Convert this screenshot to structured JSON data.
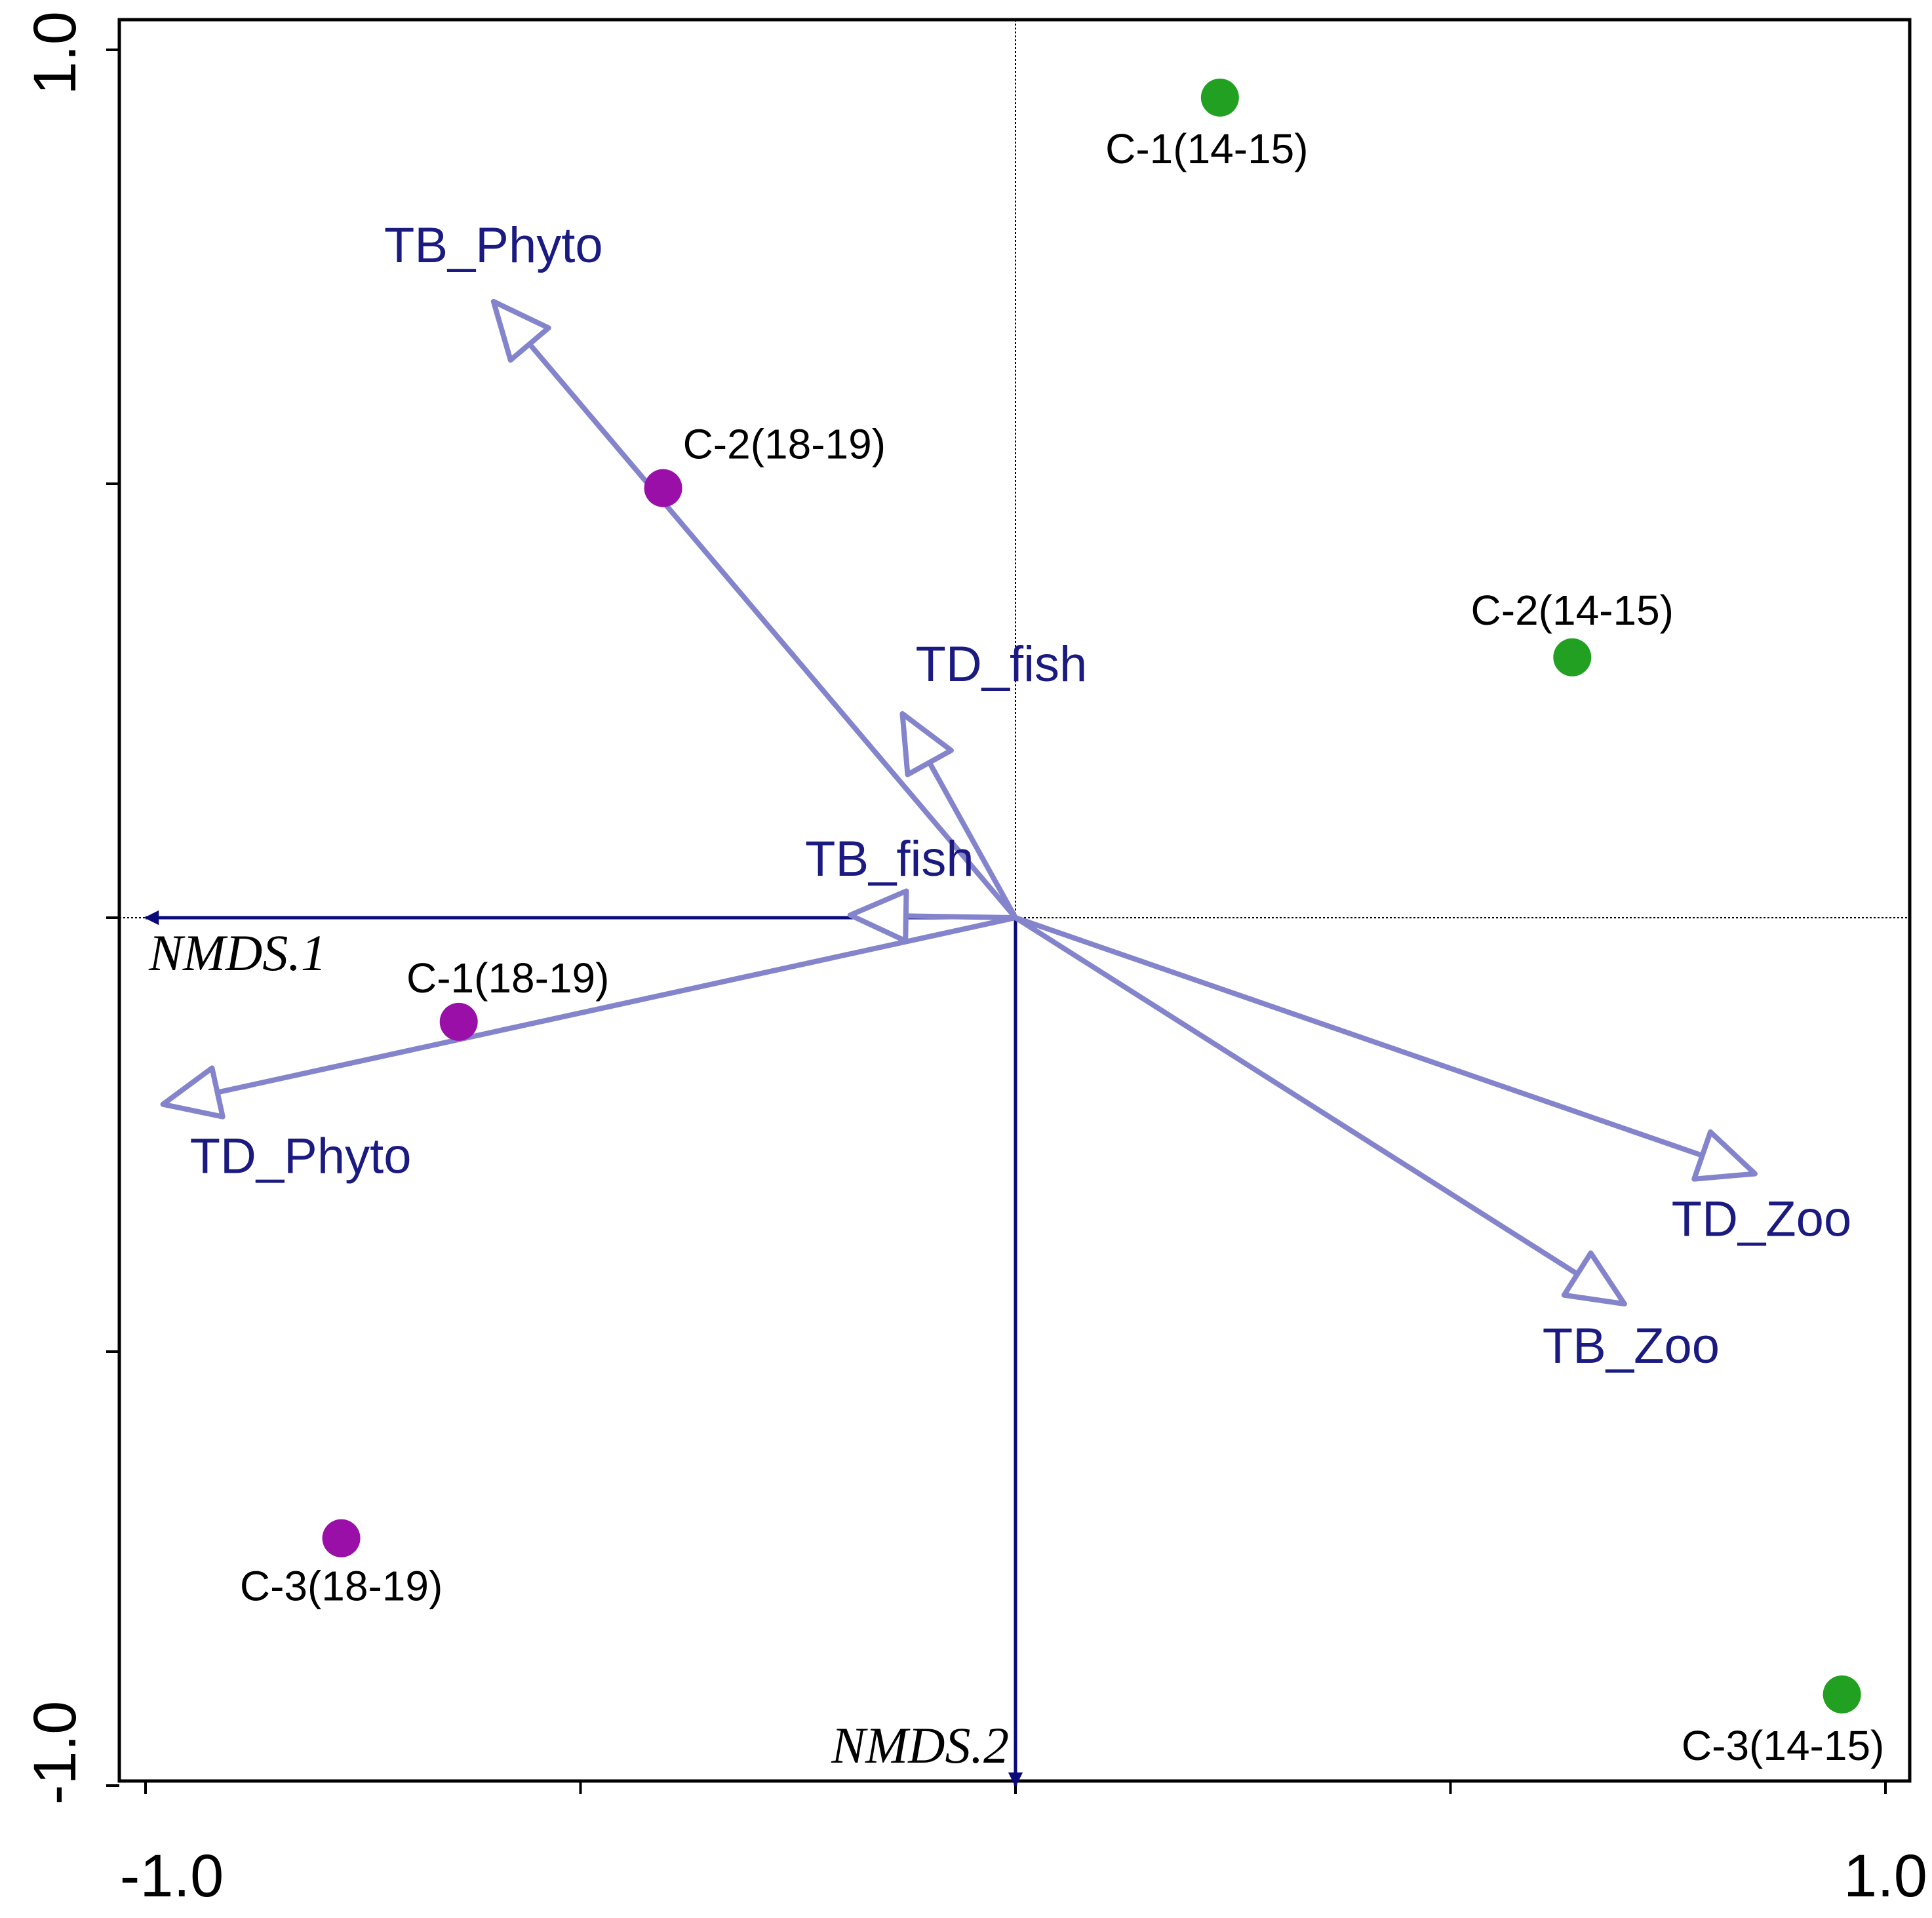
{
  "chart_data": {
    "type": "scatter",
    "subtype": "NMDS biplot",
    "title": "",
    "xlim": [
      -1.03,
      1.03
    ],
    "ylim": [
      -1.03,
      1.03
    ],
    "x_tick_values": [
      -1.0,
      -0.5,
      0.0,
      0.5,
      1.0
    ],
    "y_tick_values": [
      -1.0,
      -0.5,
      0.0,
      0.5,
      1.0
    ],
    "x_tick_labels": [
      "-1.0",
      "1.0"
    ],
    "y_tick_labels": [
      "1.0",
      "-1.0"
    ],
    "axis_arrows": [
      {
        "name": "NMDS.1",
        "x": -1.0,
        "y": 0.0
      },
      {
        "name": "NMDS.2",
        "x": 0.0,
        "y": -1.0
      }
    ],
    "vectors": [
      {
        "name": "TB_Phyto",
        "x": -0.6,
        "y": 0.71
      },
      {
        "name": "TD_fish",
        "x": -0.13,
        "y": 0.235
      },
      {
        "name": "TB_fish",
        "x": -0.19,
        "y": 0.003
      },
      {
        "name": "TD_Phyto",
        "x": -0.98,
        "y": -0.215
      },
      {
        "name": "TD_Zoo",
        "x": 0.85,
        "y": -0.295
      },
      {
        "name": "TB_Zoo",
        "x": 0.7,
        "y": -0.445
      }
    ],
    "series": [
      {
        "name": "14-15",
        "color": "#22a022",
        "points": [
          {
            "label": "C-1(14-15)",
            "x": 0.235,
            "y": 0.945
          },
          {
            "label": "C-2(14-15)",
            "x": 0.64,
            "y": 0.3
          },
          {
            "label": "C-3(14-15)",
            "x": 0.95,
            "y": -0.895
          }
        ]
      },
      {
        "name": "18-19",
        "color": "#9a0fa8",
        "points": [
          {
            "label": "C-2(18-19)",
            "x": -0.405,
            "y": 0.495
          },
          {
            "label": "C-1(18-19)",
            "x": -0.64,
            "y": -0.12
          },
          {
            "label": "C-3(18-19)",
            "x": -0.775,
            "y": -0.715
          }
        ]
      }
    ],
    "colors": {
      "vector": "#8484cc",
      "vector_label": "#1a1a80",
      "axis_arrow": "#0a0a7a",
      "frame": "#000000"
    }
  }
}
